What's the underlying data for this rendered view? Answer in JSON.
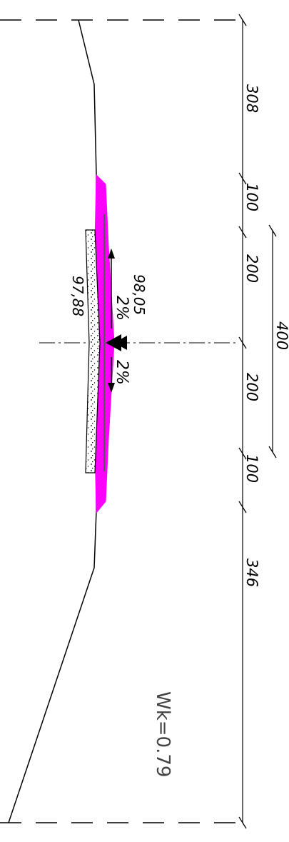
{
  "dimensions": {
    "left_side": "308",
    "shoulder_top": "100",
    "lane_top": "200",
    "lane_bottom": "200",
    "shoulder_bottom": "100",
    "right_side": "346",
    "overall": "400"
  },
  "elevations": {
    "top": "98,05",
    "bottom": "97,88"
  },
  "slopes": {
    "upper": "2%",
    "lower": "2%"
  },
  "wk_label": "Wk=0.79",
  "colors": {
    "fill_layer": "#ff00ff",
    "line": "#000000"
  }
}
